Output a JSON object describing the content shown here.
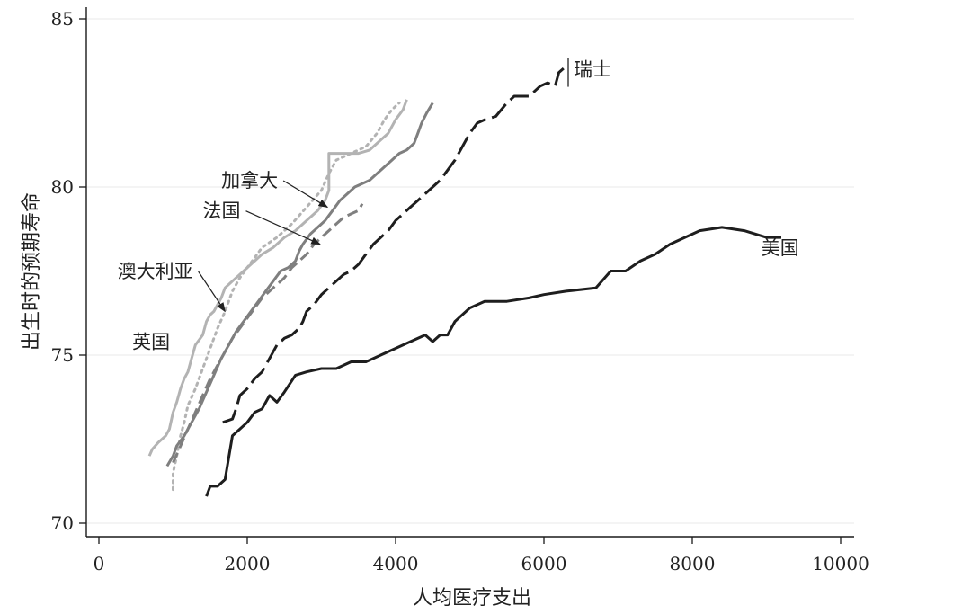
{
  "chart_data": {
    "type": "line",
    "xlabel": "人均医疗支出",
    "ylabel": "出生时的预期寿命",
    "xlim": [
      -200,
      10000
    ],
    "ylim": [
      69.6,
      85.3
    ],
    "xticks": [
      0,
      2000,
      4000,
      6000,
      8000,
      10000
    ],
    "yticks": [
      70,
      75,
      80,
      85
    ],
    "grid": "horizontal",
    "series": [
      {
        "name": "美国",
        "color": "#1e1e1e",
        "dash": "solid",
        "points": [
          [
            1450,
            70.8
          ],
          [
            1500,
            71.1
          ],
          [
            1600,
            71.1
          ],
          [
            1700,
            71.3
          ],
          [
            1800,
            72.6
          ],
          [
            1900,
            72.8
          ],
          [
            2000,
            73.0
          ],
          [
            2100,
            73.3
          ],
          [
            2200,
            73.4
          ],
          [
            2300,
            73.8
          ],
          [
            2400,
            73.6
          ],
          [
            2500,
            73.9
          ],
          [
            2650,
            74.4
          ],
          [
            2800,
            74.5
          ],
          [
            3000,
            74.6
          ],
          [
            3200,
            74.6
          ],
          [
            3400,
            74.8
          ],
          [
            3600,
            74.8
          ],
          [
            3800,
            75.0
          ],
          [
            4000,
            75.2
          ],
          [
            4200,
            75.4
          ],
          [
            4400,
            75.6
          ],
          [
            4500,
            75.4
          ],
          [
            4600,
            75.6
          ],
          [
            4700,
            75.6
          ],
          [
            4800,
            76.0
          ],
          [
            5000,
            76.4
          ],
          [
            5200,
            76.6
          ],
          [
            5500,
            76.6
          ],
          [
            5800,
            76.7
          ],
          [
            6000,
            76.8
          ],
          [
            6300,
            76.9
          ],
          [
            6700,
            77.0
          ],
          [
            6900,
            77.5
          ],
          [
            7100,
            77.5
          ],
          [
            7300,
            77.8
          ],
          [
            7500,
            78.0
          ],
          [
            7700,
            78.3
          ],
          [
            7900,
            78.5
          ],
          [
            8100,
            78.7
          ],
          [
            8400,
            78.8
          ],
          [
            8700,
            78.7
          ],
          [
            9000,
            78.5
          ],
          [
            9200,
            78.5
          ]
        ]
      },
      {
        "name": "瑞士",
        "color": "#1e1e1e",
        "dash": "longdash",
        "points": [
          [
            1670,
            73.0
          ],
          [
            1800,
            73.1
          ],
          [
            1850,
            73.4
          ],
          [
            1900,
            73.8
          ],
          [
            2000,
            74.0
          ],
          [
            2100,
            74.3
          ],
          [
            2200,
            74.5
          ],
          [
            2300,
            74.9
          ],
          [
            2400,
            75.3
          ],
          [
            2500,
            75.5
          ],
          [
            2600,
            75.6
          ],
          [
            2700,
            75.8
          ],
          [
            2750,
            76.0
          ],
          [
            2800,
            76.3
          ],
          [
            2900,
            76.5
          ],
          [
            3000,
            76.8
          ],
          [
            3100,
            77.0
          ],
          [
            3200,
            77.2
          ],
          [
            3300,
            77.4
          ],
          [
            3400,
            77.5
          ],
          [
            3500,
            77.7
          ],
          [
            3600,
            78.0
          ],
          [
            3700,
            78.3
          ],
          [
            3800,
            78.5
          ],
          [
            3900,
            78.7
          ],
          [
            4000,
            79.0
          ],
          [
            4100,
            79.2
          ],
          [
            4200,
            79.4
          ],
          [
            4300,
            79.6
          ],
          [
            4400,
            79.8
          ],
          [
            4500,
            80.0
          ],
          [
            4600,
            80.2
          ],
          [
            4700,
            80.5
          ],
          [
            4800,
            80.8
          ],
          [
            4900,
            81.2
          ],
          [
            5000,
            81.6
          ],
          [
            5100,
            81.9
          ],
          [
            5200,
            82.0
          ],
          [
            5350,
            82.1
          ],
          [
            5500,
            82.5
          ],
          [
            5600,
            82.7
          ],
          [
            5800,
            82.7
          ],
          [
            5950,
            83.0
          ],
          [
            6050,
            83.1
          ],
          [
            6150,
            83.0
          ],
          [
            6200,
            83.4
          ],
          [
            6300,
            83.6
          ]
        ]
      },
      {
        "name": "澳大利亚",
        "color": "#b3b3b3",
        "dash": "solid",
        "points": [
          [
            680,
            72.0
          ],
          [
            720,
            72.2
          ],
          [
            800,
            72.4
          ],
          [
            900,
            72.6
          ],
          [
            950,
            72.8
          ],
          [
            1000,
            73.3
          ],
          [
            1050,
            73.6
          ],
          [
            1100,
            74.0
          ],
          [
            1150,
            74.3
          ],
          [
            1200,
            74.5
          ],
          [
            1250,
            74.9
          ],
          [
            1300,
            75.3
          ],
          [
            1400,
            75.6
          ],
          [
            1450,
            76.0
          ],
          [
            1500,
            76.2
          ],
          [
            1550,
            76.3
          ],
          [
            1600,
            76.5
          ],
          [
            1650,
            76.7
          ],
          [
            1700,
            77.0
          ],
          [
            1800,
            77.2
          ],
          [
            1900,
            77.4
          ],
          [
            2000,
            77.6
          ],
          [
            2100,
            77.8
          ],
          [
            2200,
            78.0
          ],
          [
            2350,
            78.2
          ],
          [
            2500,
            78.5
          ],
          [
            2650,
            78.7
          ],
          [
            2800,
            79.0
          ],
          [
            2950,
            79.3
          ],
          [
            3050,
            79.6
          ],
          [
            3100,
            79.9
          ],
          [
            3100,
            80.5
          ],
          [
            3100,
            81.0
          ],
          [
            3300,
            81.0
          ],
          [
            3500,
            81.0
          ],
          [
            3650,
            81.1
          ],
          [
            3750,
            81.3
          ],
          [
            3900,
            81.6
          ],
          [
            4000,
            82.0
          ],
          [
            4100,
            82.3
          ],
          [
            4150,
            82.6
          ]
        ]
      },
      {
        "name": "英国",
        "color": "#b3b3b3",
        "dash": "dot",
        "points": [
          [
            1000,
            71.0
          ],
          [
            1000,
            71.5
          ],
          [
            1050,
            72.0
          ],
          [
            1100,
            72.6
          ],
          [
            1150,
            73.0
          ],
          [
            1200,
            73.5
          ],
          [
            1300,
            74.0
          ],
          [
            1400,
            74.6
          ],
          [
            1500,
            75.2
          ],
          [
            1600,
            75.8
          ],
          [
            1700,
            76.3
          ],
          [
            1800,
            76.9
          ],
          [
            1900,
            77.3
          ],
          [
            2000,
            77.6
          ],
          [
            2100,
            77.9
          ],
          [
            2200,
            78.2
          ],
          [
            2400,
            78.5
          ],
          [
            2600,
            78.9
          ],
          [
            2800,
            79.4
          ],
          [
            3000,
            79.9
          ],
          [
            3100,
            80.4
          ],
          [
            3200,
            80.8
          ],
          [
            3400,
            81.0
          ],
          [
            3600,
            81.2
          ],
          [
            3750,
            81.6
          ],
          [
            3850,
            82.0
          ],
          [
            3950,
            82.3
          ],
          [
            4050,
            82.5
          ]
        ]
      },
      {
        "name": "加拿大",
        "color": "#7f7f7f",
        "dash": "solid",
        "points": [
          [
            920,
            71.7
          ],
          [
            1000,
            72.0
          ],
          [
            1050,
            72.3
          ],
          [
            1150,
            72.6
          ],
          [
            1250,
            73.0
          ],
          [
            1350,
            73.4
          ],
          [
            1450,
            73.9
          ],
          [
            1550,
            74.4
          ],
          [
            1650,
            74.9
          ],
          [
            1750,
            75.3
          ],
          [
            1850,
            75.7
          ],
          [
            1950,
            76.0
          ],
          [
            2050,
            76.3
          ],
          [
            2150,
            76.6
          ],
          [
            2250,
            76.9
          ],
          [
            2350,
            77.2
          ],
          [
            2450,
            77.5
          ],
          [
            2550,
            77.6
          ],
          [
            2650,
            77.8
          ],
          [
            2700,
            78.1
          ],
          [
            2750,
            78.3
          ],
          [
            2850,
            78.6
          ],
          [
            2950,
            78.8
          ],
          [
            3050,
            79.0
          ],
          [
            3150,
            79.3
          ],
          [
            3250,
            79.6
          ],
          [
            3350,
            79.8
          ],
          [
            3450,
            80.0
          ],
          [
            3550,
            80.1
          ],
          [
            3650,
            80.2
          ],
          [
            3750,
            80.4
          ],
          [
            3850,
            80.6
          ],
          [
            3950,
            80.8
          ],
          [
            4050,
            81.0
          ],
          [
            4150,
            81.1
          ],
          [
            4250,
            81.3
          ],
          [
            4300,
            81.6
          ],
          [
            4350,
            81.9
          ],
          [
            4420,
            82.2
          ],
          [
            4500,
            82.5
          ]
        ]
      },
      {
        "name": "法国",
        "color": "#7f7f7f",
        "dash": "dash",
        "points": [
          [
            1000,
            71.8
          ],
          [
            1100,
            72.3
          ],
          [
            1200,
            72.8
          ],
          [
            1300,
            73.3
          ],
          [
            1400,
            73.8
          ],
          [
            1500,
            74.3
          ],
          [
            1600,
            74.7
          ],
          [
            1700,
            75.1
          ],
          [
            1800,
            75.5
          ],
          [
            1900,
            75.8
          ],
          [
            2000,
            76.1
          ],
          [
            2100,
            76.4
          ],
          [
            2200,
            76.7
          ],
          [
            2300,
            76.9
          ],
          [
            2400,
            77.1
          ],
          [
            2500,
            77.3
          ],
          [
            2600,
            77.6
          ],
          [
            2700,
            77.8
          ],
          [
            2800,
            78.0
          ],
          [
            2900,
            78.3
          ],
          [
            3000,
            78.5
          ],
          [
            3100,
            78.7
          ],
          [
            3200,
            78.9
          ],
          [
            3300,
            79.1
          ],
          [
            3400,
            79.2
          ],
          [
            3500,
            79.3
          ],
          [
            3550,
            79.5
          ]
        ]
      }
    ],
    "annotations": [
      {
        "text": "加拿大",
        "x": 1650,
        "y": 80.0,
        "arrow_to": [
          3080,
          79.4
        ]
      },
      {
        "text": "法国",
        "x": 1400,
        "y": 79.1,
        "arrow_to": [
          2980,
          78.3
        ]
      },
      {
        "text": "澳大利亚",
        "x": 250,
        "y": 77.3,
        "arrow_to": [
          1700,
          76.3
        ]
      },
      {
        "text": "英国",
        "x": 450,
        "y": 75.2,
        "arrow_to": null
      },
      {
        "text": "美国",
        "x": 8930,
        "y": 78.0,
        "arrow_to": null
      },
      {
        "text": "瑞士",
        "x": 6400,
        "y": 83.3,
        "arrow_to": null
      }
    ]
  }
}
